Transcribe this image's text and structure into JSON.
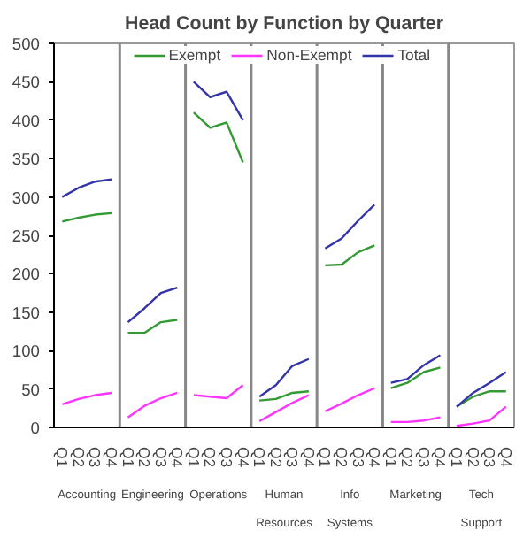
{
  "chart_data": {
    "type": "line",
    "title": "Head Count by Function by Quarter",
    "categories": [
      "Q1",
      "Q2",
      "Q3",
      "Q4",
      "Q1",
      "Q2",
      "Q3",
      "Q4",
      "Q1",
      "Q2",
      "Q3",
      "Q4",
      "Q1",
      "Q2",
      "Q3",
      "Q4",
      "Q1",
      "Q2",
      "Q3",
      "Q4",
      "Q1",
      "Q2",
      "Q3",
      "Q4",
      "Q1",
      "Q2",
      "Q3",
      "Q4"
    ],
    "annotations": [
      "Accounting",
      "Engineering",
      "Operations",
      "Human\nResources",
      "Info\nSystems",
      "Marketing",
      "Tech\nSupport"
    ],
    "series": [
      {
        "name": "Exempt",
        "color": "#339933",
        "values": [
          268,
          273,
          277,
          279,
          123,
          123,
          137,
          140,
          410,
          390,
          397,
          345,
          35,
          37,
          45,
          47,
          211,
          212,
          228,
          237,
          51,
          58,
          72,
          78,
          27,
          40,
          47,
          47
        ]
      },
      {
        "name": "Non-Exempt",
        "color": "#ff33ff",
        "values": [
          30,
          37,
          42,
          45,
          13,
          28,
          38,
          45,
          42,
          40,
          38,
          55,
          8,
          20,
          32,
          42,
          21,
          31,
          42,
          51,
          7,
          7,
          9,
          13,
          2,
          5,
          9,
          27
        ]
      },
      {
        "name": "Total",
        "color": "#3333aa",
        "values": [
          300,
          312,
          320,
          323,
          137,
          155,
          175,
          182,
          450,
          430,
          437,
          400,
          40,
          55,
          80,
          89,
          233,
          246,
          269,
          290,
          58,
          63,
          81,
          94,
          27,
          45,
          58,
          72
        ]
      }
    ],
    "ylim": [
      0,
      500
    ],
    "yticks": [
      0,
      50,
      100,
      150,
      200,
      250,
      300,
      350,
      400,
      450,
      500
    ],
    "grid": false,
    "legend": "top",
    "marker": "none",
    "line_style": "solid"
  }
}
